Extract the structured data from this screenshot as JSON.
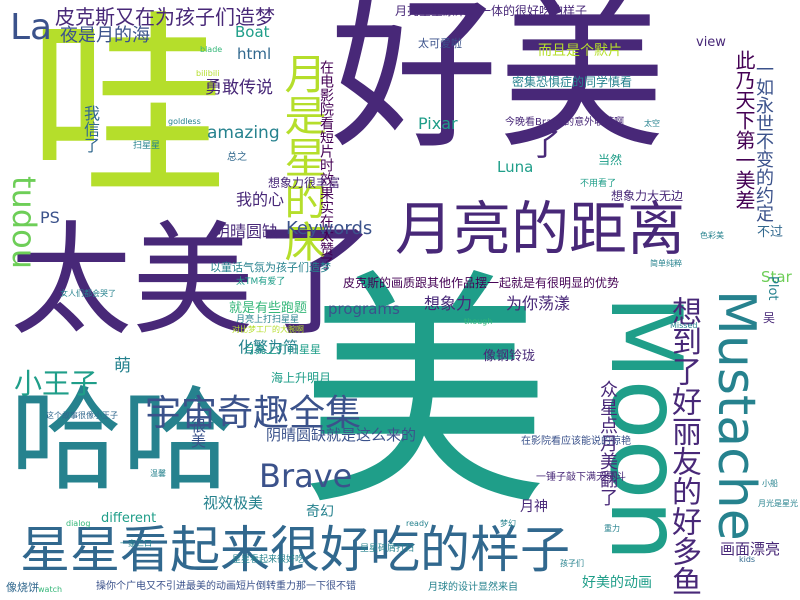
{
  "palette": {
    "purple": "#440154",
    "indigo": "#482878",
    "navy": "#3b528b",
    "blue": "#31688e",
    "teal": "#26828e",
    "cyan": "#1f9e89",
    "green": "#35b779",
    "lime": "#6ece58",
    "yellowgreen": "#b5de2b",
    "yellow": "#fde725"
  },
  "words": [
    {
      "text": "好美",
      "color": "indigo"
    },
    {
      "text": "美",
      "color": "cyan"
    },
    {
      "text": "哇",
      "color": "yellowgreen"
    },
    {
      "text": "太美了",
      "color": "indigo"
    },
    {
      "text": "哈哈",
      "color": "teal"
    },
    {
      "text": "Moon",
      "color": "cyan"
    },
    {
      "text": "星星看起来很好吃的样子",
      "color": "blue"
    },
    {
      "text": "月亮的距离",
      "color": "indigo"
    },
    {
      "text": "Mustache",
      "color": "teal"
    },
    {
      "text": "宇宙奇趣全集",
      "color": "navy"
    },
    {
      "text": "想到了好丽友的好多鱼",
      "color": "indigo"
    },
    {
      "text": "月是星的床",
      "color": "yellowgreen"
    },
    {
      "text": "Brave",
      "color": "navy"
    },
    {
      "text": "小王子",
      "color": "cyan"
    },
    {
      "text": "tudou",
      "color": "lime"
    },
    {
      "text": "La",
      "color": "navy"
    },
    {
      "text": "皮克斯又在为孩子们造梦",
      "color": "indigo"
    },
    {
      "text": "夜是月的海",
      "color": "navy"
    },
    {
      "text": "月亮星星原来是一体的很好吃的样子",
      "color": "indigo"
    },
    {
      "text": "此乃天下第一美差",
      "color": "purple"
    },
    {
      "text": "一如永世不变的约定",
      "color": "navy"
    },
    {
      "text": "在电影院看短片时效果实在太赞了",
      "color": "purple"
    },
    {
      "text": "Keywords",
      "color": "navy"
    },
    {
      "text": "amazing",
      "color": "teal"
    },
    {
      "text": "阴晴圆缺",
      "color": "indigo"
    },
    {
      "text": "阴晴圆缺就是这么来的",
      "color": "navy"
    },
    {
      "text": "皮克斯的画质跟其他作品摆一起就是有很明显的优势",
      "color": "purple"
    },
    {
      "text": "programs",
      "color": "navy"
    },
    {
      "text": "想象力",
      "color": "indigo"
    },
    {
      "text": "为你荡漾",
      "color": "indigo"
    },
    {
      "text": "月亮上打扫星星",
      "color": "cyan"
    },
    {
      "text": "众星点月美翻了",
      "color": "indigo"
    },
    {
      "text": "勇敢传说",
      "color": "indigo"
    },
    {
      "text": "Pixar",
      "color": "cyan"
    },
    {
      "text": "Luna",
      "color": "cyan"
    },
    {
      "text": "Boat",
      "color": "cyan"
    },
    {
      "text": "html",
      "color": "blue"
    },
    {
      "text": "我信了",
      "color": "blue"
    },
    {
      "text": "而且是个默片",
      "color": "yellowgreen"
    },
    {
      "text": "太可爱啦",
      "color": "navy"
    },
    {
      "text": "view",
      "color": "indigo"
    },
    {
      "text": "了",
      "color": "indigo"
    },
    {
      "text": "想象力很丰富",
      "color": "indigo"
    },
    {
      "text": "想象力大无边",
      "color": "indigo"
    },
    {
      "text": "我的心",
      "color": "indigo"
    },
    {
      "text": "PS",
      "color": "navy"
    },
    {
      "text": "月神",
      "color": "indigo"
    },
    {
      "text": "画面漂亮",
      "color": "indigo"
    },
    {
      "text": "好美的动画",
      "color": "cyan"
    },
    {
      "text": "视效极美",
      "color": "teal"
    },
    {
      "text": "化繁为简",
      "color": "teal"
    },
    {
      "text": "different",
      "color": "cyan"
    },
    {
      "text": "奇幻",
      "color": "teal"
    },
    {
      "text": "萌",
      "color": "teal"
    },
    {
      "text": "很美",
      "color": "navy"
    },
    {
      "text": "Star",
      "color": "lime"
    },
    {
      "text": "Plot",
      "color": "teal"
    },
    {
      "text": "不过",
      "color": "blue"
    },
    {
      "text": "海上升明月",
      "color": "cyan"
    },
    {
      "text": "当然",
      "color": "cyan"
    },
    {
      "text": "像钢铃珑",
      "color": "indigo"
    },
    {
      "text": "吴",
      "color": "indigo"
    },
    {
      "text": "以童话气氛为孩子们造梦",
      "color": "teal"
    },
    {
      "text": "就是有些跑题",
      "color": "green"
    },
    {
      "text": "密集恐惧症的同学慎看",
      "color": "teal"
    },
    {
      "text": "今晚看Brave的意外收获啊",
      "color": "indigo"
    },
    {
      "text": "一锤子敲下满天星斗",
      "color": "indigo"
    },
    {
      "text": "在影院看应该能说的惊艳",
      "color": "navy"
    },
    {
      "text": "星星碎屑打扫",
      "color": "teal"
    },
    {
      "text": "操你个广电又不引进最美的动画短片倒转重力那一下很不错",
      "color": "navy"
    },
    {
      "text": "月球的设计显然来自",
      "color": "teal"
    },
    {
      "text": "星星看起来很好吃",
      "color": "teal"
    },
    {
      "text": "这个故事很像小王子",
      "color": "blue"
    },
    {
      "text": "像烧饼",
      "color": "blue"
    },
    {
      "text": "总之",
      "color": "blue"
    },
    {
      "text": "扫星星",
      "color": "teal"
    },
    {
      "text": "月亮上打扫星星",
      "color": "teal"
    },
    {
      "text": "女人们都会哭了",
      "color": "teal"
    },
    {
      "text": "不用看了",
      "color": "cyan"
    },
    {
      "text": "太TM有爱了",
      "color": "cyan"
    },
    {
      "text": "对比梦工厂的大腕啊",
      "color": "yellowgreen"
    },
    {
      "text": "小船",
      "color": "teal"
    },
    {
      "text": "重力",
      "color": "teal"
    },
    {
      "text": "bilibili",
      "color": "yellowgreen"
    },
    {
      "text": "goldless",
      "color": "teal"
    },
    {
      "text": "dialog",
      "color": "green"
    },
    {
      "text": "kids",
      "color": "blue"
    },
    {
      "text": "though",
      "color": "green"
    },
    {
      "text": "ready",
      "color": "teal"
    },
    {
      "text": "Missed",
      "color": "teal"
    },
    {
      "text": "watch",
      "color": "green"
    },
    {
      "text": "blade",
      "color": "green"
    },
    {
      "text": "孩子们",
      "color": "teal"
    },
    {
      "text": "月光是星光",
      "color": "teal"
    },
    {
      "text": "简单纯粹",
      "color": "teal"
    },
    {
      "text": "色彩美",
      "color": "teal"
    },
    {
      "text": "太空",
      "color": "teal"
    },
    {
      "text": "一家三口",
      "color": "teal"
    },
    {
      "text": "温馨",
      "color": "teal"
    },
    {
      "text": "梦幻",
      "color": "teal"
    }
  ]
}
